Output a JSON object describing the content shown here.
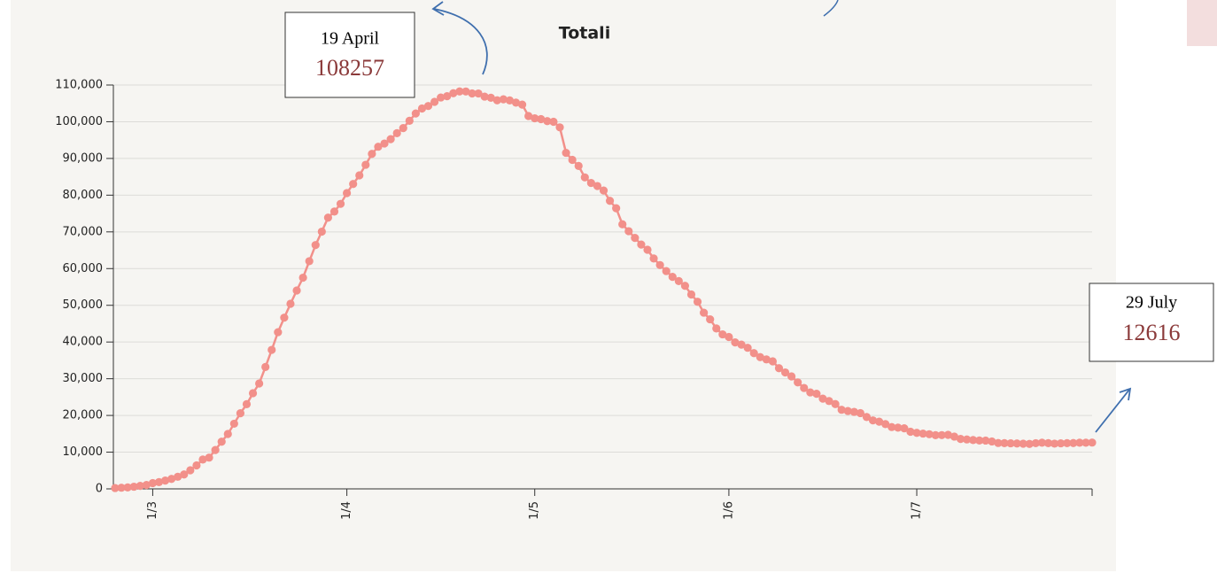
{
  "chart_data": {
    "type": "line",
    "title": "Totali",
    "x": [
      "24/2",
      "25/2",
      "26/2",
      "27/2",
      "28/2",
      "29/2",
      "1/3",
      "2/3",
      "3/3",
      "4/3",
      "5/3",
      "6/3",
      "7/3",
      "8/3",
      "9/3",
      "10/3",
      "11/3",
      "12/3",
      "13/3",
      "14/3",
      "15/3",
      "16/3",
      "17/3",
      "18/3",
      "19/3",
      "20/3",
      "21/3",
      "22/3",
      "23/3",
      "24/3",
      "25/3",
      "26/3",
      "27/3",
      "28/3",
      "29/3",
      "30/3",
      "31/3",
      "1/4",
      "2/4",
      "3/4",
      "4/4",
      "5/4",
      "6/4",
      "7/4",
      "8/4",
      "9/4",
      "10/4",
      "11/4",
      "12/4",
      "13/4",
      "14/4",
      "15/4",
      "16/4",
      "17/4",
      "18/4",
      "19/4",
      "20/4",
      "21/4",
      "22/4",
      "23/4",
      "24/4",
      "25/4",
      "26/4",
      "27/4",
      "28/4",
      "29/4",
      "30/4",
      "1/5",
      "2/5",
      "3/5",
      "4/5",
      "5/5",
      "6/5",
      "7/5",
      "8/5",
      "9/5",
      "10/5",
      "11/5",
      "12/5",
      "13/5",
      "14/5",
      "15/5",
      "16/5",
      "17/5",
      "18/5",
      "19/5",
      "20/5",
      "21/5",
      "22/5",
      "23/5",
      "24/5",
      "25/5",
      "26/5",
      "27/5",
      "28/5",
      "29/5",
      "30/5",
      "31/5",
      "1/6",
      "2/6",
      "3/6",
      "4/6",
      "5/6",
      "6/6",
      "7/6",
      "8/6",
      "9/6",
      "10/6",
      "11/6",
      "12/6",
      "13/6",
      "14/6",
      "15/6",
      "16/6",
      "17/6",
      "18/6",
      "19/6",
      "20/6",
      "21/6",
      "22/6",
      "23/6",
      "24/6",
      "25/6",
      "26/6",
      "27/6",
      "28/6",
      "29/6",
      "30/6",
      "1/7",
      "2/7",
      "3/7",
      "4/7",
      "5/7",
      "6/7",
      "7/7",
      "8/7",
      "9/7",
      "10/7",
      "11/7",
      "12/7",
      "13/7",
      "14/7",
      "15/7",
      "16/7",
      "17/7",
      "18/7",
      "19/7",
      "20/7",
      "21/7",
      "22/7",
      "23/7",
      "24/7",
      "25/7",
      "26/7",
      "27/7",
      "28/7",
      "29/7"
    ],
    "series": [
      {
        "name": "Totali",
        "color": "#f2908a",
        "values": [
          221,
          311,
          385,
          588,
          821,
          1049,
          1577,
          1835,
          2263,
          2706,
          3296,
          3916,
          5061,
          6387,
          7985,
          8514,
          10590,
          12839,
          14955,
          17750,
          20603,
          23073,
          26062,
          28710,
          33190,
          37860,
          42681,
          46638,
          50418,
          54030,
          57521,
          62013,
          66414,
          70065,
          73880,
          75528,
          77635,
          80572,
          83049,
          85388,
          88274,
          91246,
          93187,
          94067,
          95262,
          96877,
          98273,
          100269,
          102253,
          103616,
          104291,
          105418,
          106607,
          106962,
          107771,
          108257,
          108237,
          107709,
          107699,
          106848,
          106527,
          105847,
          106103,
          105813,
          105205,
          104657,
          101551,
          100943,
          100704,
          100179,
          99980,
          98467,
          91528,
          89624,
          87961,
          84842,
          83324,
          82488,
          81266,
          78457,
          76440,
          72070,
          70187,
          68351,
          66553,
          65129,
          62752,
          60960,
          59322,
          57752,
          56594,
          55300,
          52942,
          50966,
          47986,
          46175,
          43691,
          42075,
          41367,
          39893,
          39297,
          38429,
          36976,
          35877,
          35262,
          34730,
          32872,
          31710,
          30637,
          28997,
          27485,
          26274,
          25909,
          24569,
          23925,
          23101,
          21543,
          21212,
          20972,
          20637,
          19573,
          18655,
          18303,
          17638,
          16836,
          16681,
          16496,
          15563,
          15255,
          15060,
          14884,
          14621,
          14642,
          14709,
          14242,
          13595,
          13459,
          13303,
          13179,
          13157,
          12919,
          12493,
          12456,
          12404,
          12368,
          12301,
          12248,
          12440,
          12581,
          12452,
          12322,
          12404,
          12462,
          12482,
          12565,
          12581,
          12616
        ]
      }
    ],
    "xlim": [
      "24/2",
      "29/7"
    ],
    "xticks": [
      "1/3",
      "1/4",
      "1/5",
      "1/6",
      "1/7"
    ],
    "ylim": [
      0,
      110000
    ],
    "yticks": [
      0,
      {
        "value": 10000,
        "label": "10,000"
      },
      {
        "value": 20000,
        "label": "20,000"
      },
      {
        "value": 30000,
        "label": "30,000"
      },
      {
        "value": 40000,
        "label": "40,000"
      },
      {
        "value": 50000,
        "label": "50,000"
      },
      {
        "value": 60000,
        "label": "60,000"
      },
      {
        "value": 70000,
        "label": "70,000"
      },
      {
        "value": 80000,
        "label": "80,000"
      },
      {
        "value": 90000,
        "label": "90,000"
      },
      {
        "value": 100000,
        "label": "100,000"
      },
      {
        "value": 110000,
        "label": "110,000"
      }
    ],
    "grid": true,
    "annotations": [
      {
        "label": "19 April",
        "value": 108257
      },
      {
        "label": "29 July",
        "value": 12616
      }
    ]
  }
}
